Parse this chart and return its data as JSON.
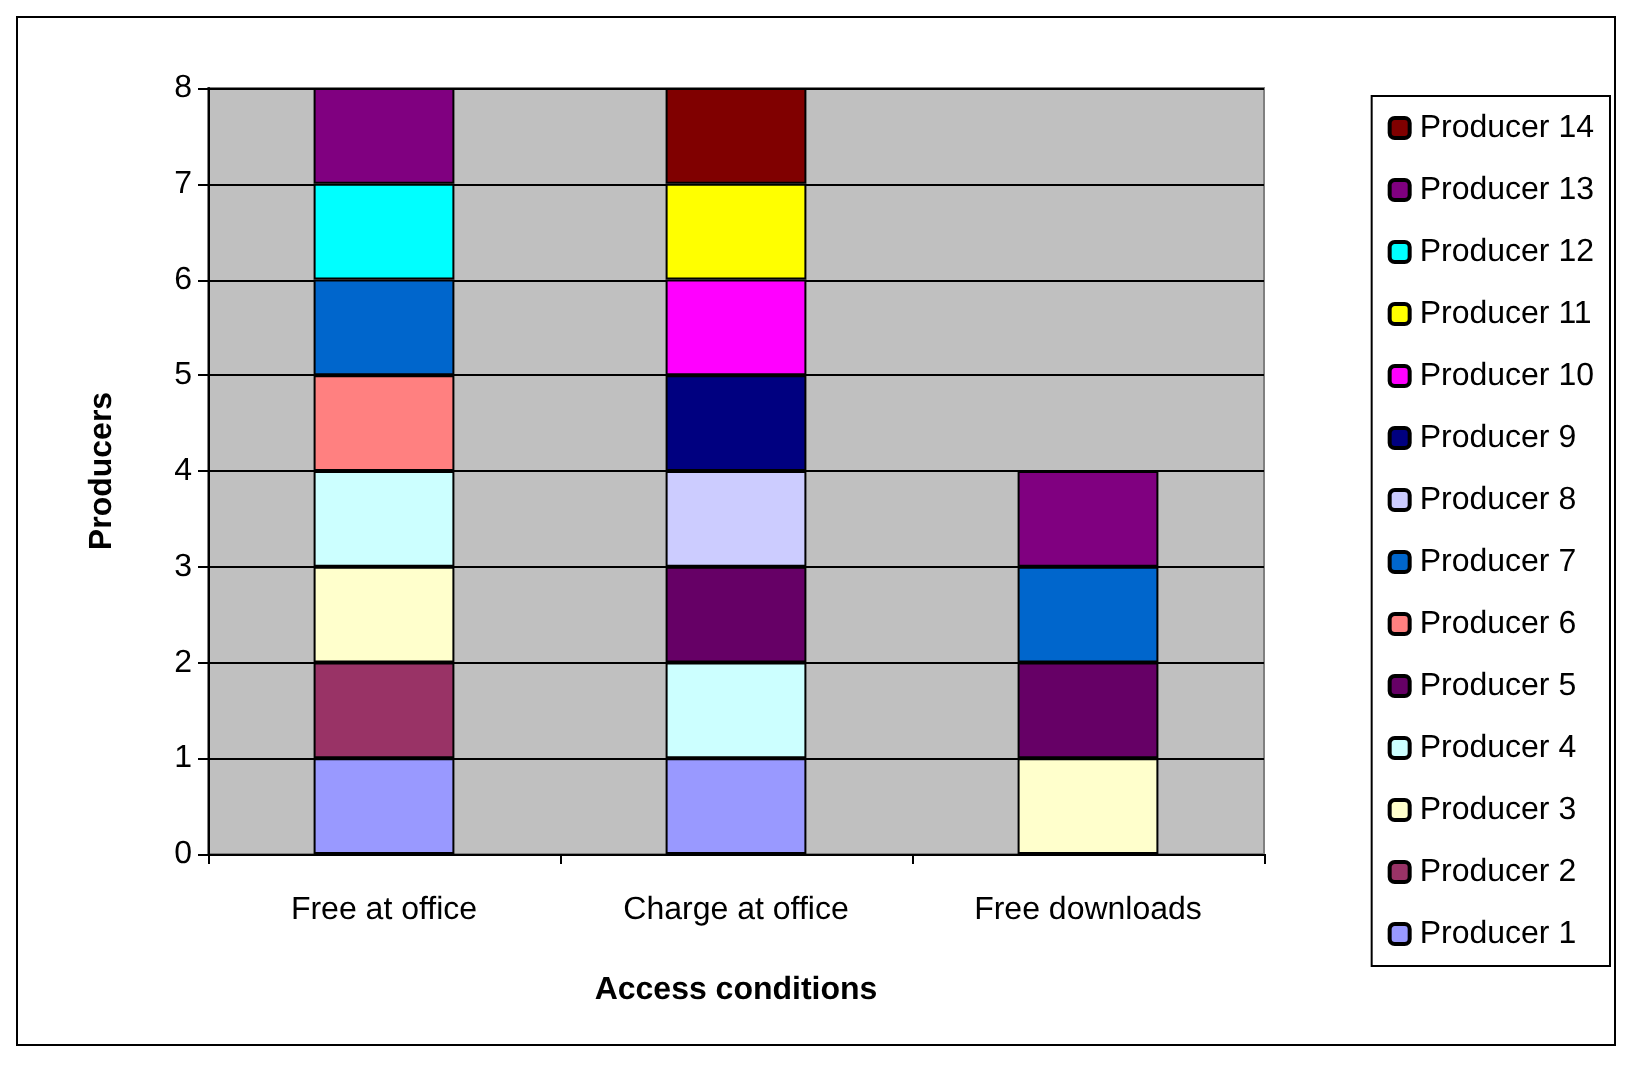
{
  "chart_data": {
    "type": "bar",
    "stacked": true,
    "xlabel": "Access conditions",
    "ylabel": "Producers",
    "categories": [
      "Free at office",
      "Charge at office",
      "Free downloads"
    ],
    "series": [
      {
        "name": "Producer 1",
        "color": "#9999ff",
        "values": [
          1,
          1,
          null
        ]
      },
      {
        "name": "Producer 2",
        "color": "#993366",
        "values": [
          1,
          null,
          null
        ]
      },
      {
        "name": "Producer 3",
        "color": "#ffffcc",
        "values": [
          1,
          null,
          1
        ]
      },
      {
        "name": "Producer 4",
        "color": "#ccffff",
        "values": [
          1,
          1,
          null
        ]
      },
      {
        "name": "Producer 5",
        "color": "#660066",
        "values": [
          null,
          1,
          1
        ]
      },
      {
        "name": "Producer 6",
        "color": "#ff8080",
        "values": [
          1,
          null,
          null
        ]
      },
      {
        "name": "Producer 7",
        "color": "#0066cc",
        "values": [
          1,
          null,
          1
        ]
      },
      {
        "name": "Producer 8",
        "color": "#ccccff",
        "values": [
          null,
          1,
          null
        ]
      },
      {
        "name": "Producer 9",
        "color": "#000080",
        "values": [
          null,
          1,
          null
        ]
      },
      {
        "name": "Producer 10",
        "color": "#ff00ff",
        "values": [
          null,
          1,
          null
        ]
      },
      {
        "name": "Producer 11",
        "color": "#ffff00",
        "values": [
          null,
          1,
          null
        ]
      },
      {
        "name": "Producer 12",
        "color": "#00ffff",
        "values": [
          1,
          null,
          null
        ]
      },
      {
        "name": "Producer 13",
        "color": "#800080",
        "values": [
          1,
          null,
          1
        ]
      },
      {
        "name": "Producer 14",
        "color": "#800000",
        "values": [
          null,
          1,
          null
        ]
      }
    ],
    "ylim": [
      0,
      8
    ],
    "yticks": [
      0,
      1,
      2,
      3,
      4,
      5,
      6,
      7,
      8
    ],
    "grid": "y",
    "legend": "right"
  }
}
